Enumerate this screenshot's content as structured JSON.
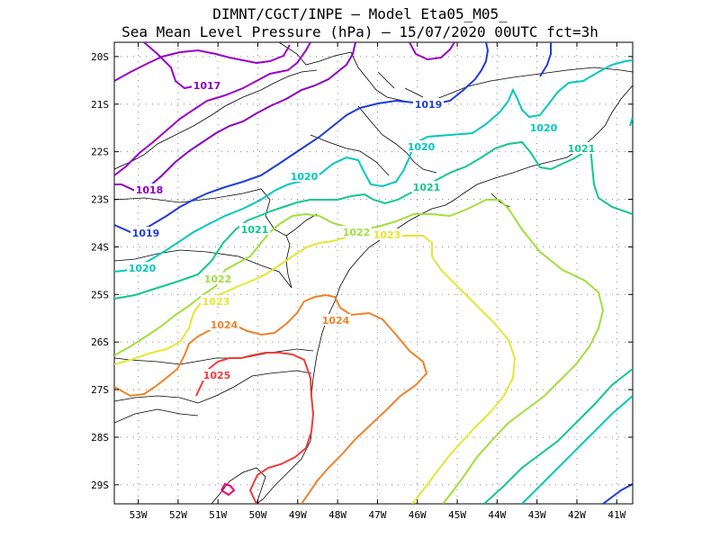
{
  "title": {
    "line1": "DIMNT/CGCT/INPE –  Model Eta05_M05_",
    "line2": "Sea Mean Level Pressure (hPa) – 15/07/2020 00UTC fct=3h"
  },
  "axes": {
    "x_ticks": [
      "53W",
      "52W",
      "51W",
      "50W",
      "49W",
      "48W",
      "47W",
      "46W",
      "45W",
      "44W",
      "43W",
      "42W",
      "41W"
    ],
    "y_ticks": [
      "20S",
      "21S",
      "22S",
      "23S",
      "24S",
      "25S",
      "26S",
      "27S",
      "28S",
      "29S"
    ],
    "lon_range": [
      -53.6,
      -40.6
    ],
    "lat_range": [
      -29.4,
      -19.7
    ]
  },
  "isobars": [
    {
      "value": 1017,
      "label": "1017",
      "color": "#9a00c8"
    },
    {
      "value": 1018,
      "label": "1018",
      "color": "#8a00c0"
    },
    {
      "value": 1019,
      "label": "1019",
      "color": "#1e3cdc"
    },
    {
      "value": 1020,
      "label": "1020",
      "color": "#00c8c0"
    },
    {
      "value": 1021,
      "label": "1021",
      "color": "#10c88c"
    },
    {
      "value": 1022,
      "label": "1022",
      "color": "#a0e03c"
    },
    {
      "value": 1023,
      "label": "1023",
      "color": "#e6e632"
    },
    {
      "value": 1024,
      "label": "1024",
      "color": "#f08228"
    },
    {
      "value": 1025,
      "label": "1025",
      "color": "#f03c3c"
    }
  ]
}
